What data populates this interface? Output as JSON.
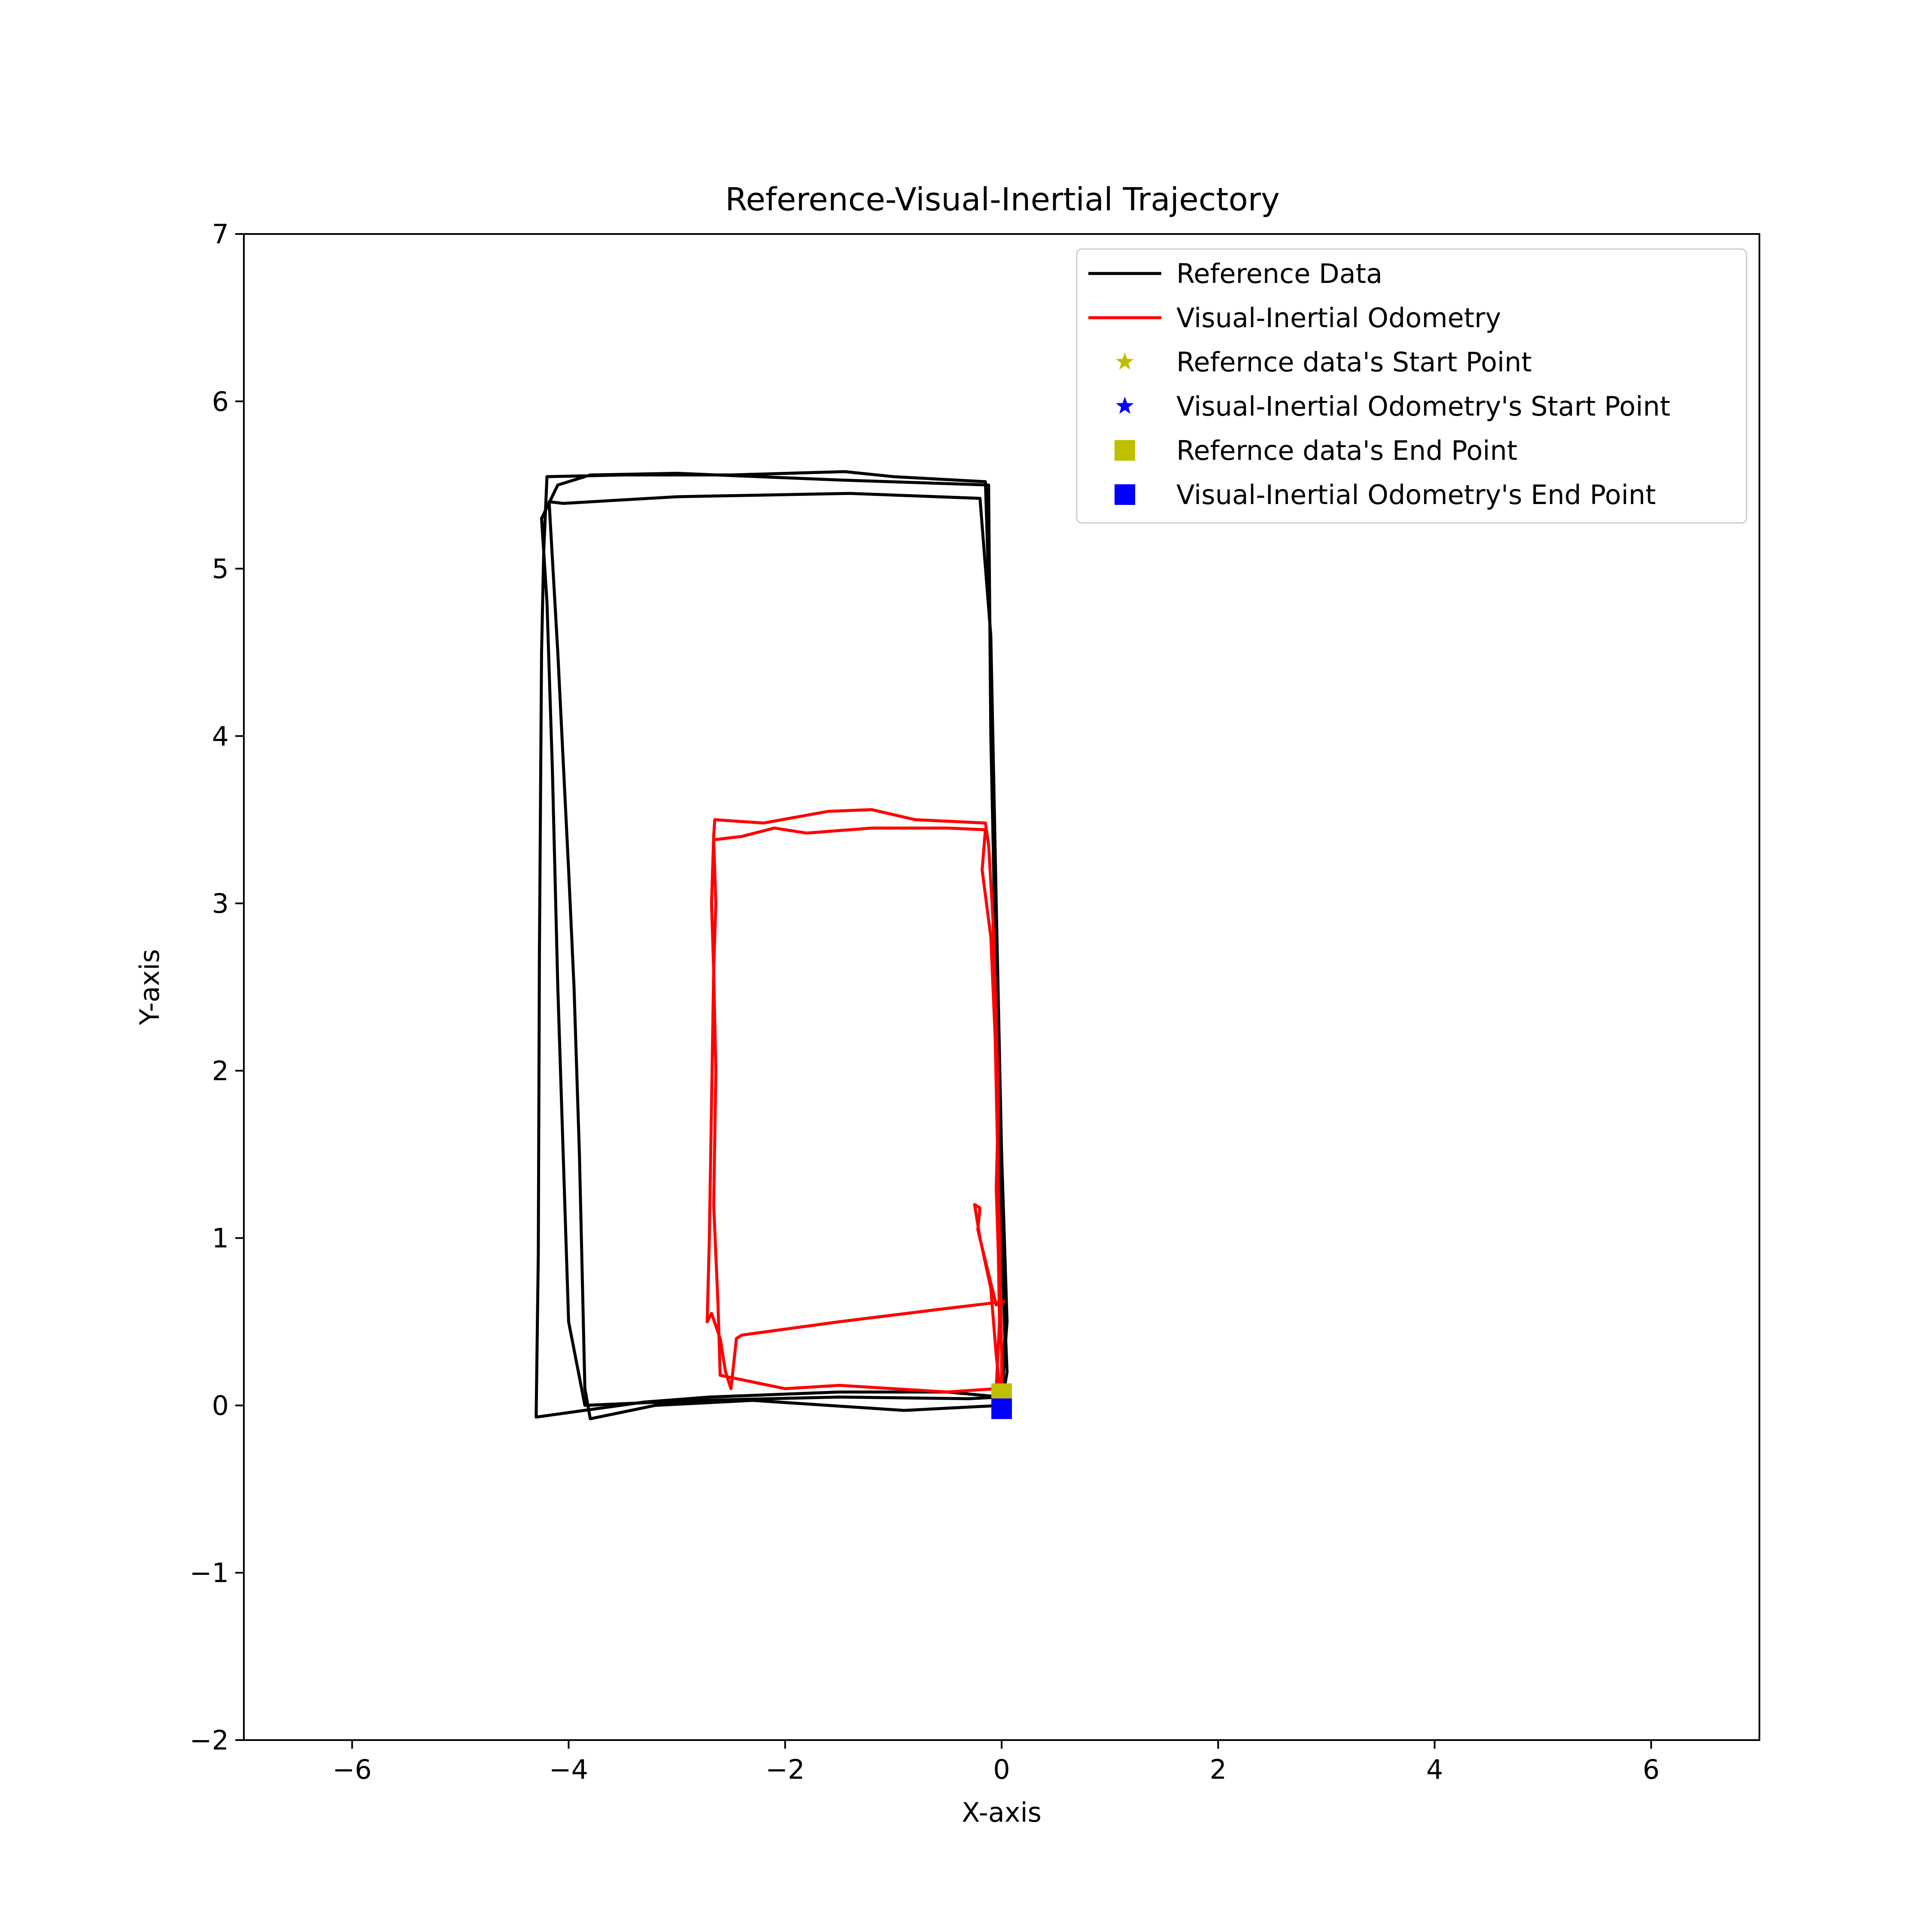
{
  "chart_data": {
    "type": "line",
    "title": "Reference-Visual-Inertial Trajectory",
    "xlabel": "X-axis",
    "ylabel": "Y-axis",
    "xlim": [
      -7,
      7
    ],
    "ylim": [
      -2,
      7
    ],
    "xticks": [
      -6,
      -4,
      -2,
      0,
      2,
      4,
      6
    ],
    "yticks": [
      -2,
      -1,
      0,
      1,
      2,
      3,
      4,
      5,
      6,
      7
    ],
    "xtick_labels": [
      "−6",
      "−4",
      "−2",
      "0",
      "2",
      "4",
      "6"
    ],
    "ytick_labels": [
      "−2",
      "−1",
      "0",
      "1",
      "2",
      "3",
      "4",
      "5",
      "6",
      "7"
    ],
    "grid": false,
    "legend_position": "upper-right",
    "series": [
      {
        "name": "Reference Data",
        "color": "#000000",
        "kind": "line",
        "points": [
          [
            0.0,
            0.0
          ],
          [
            -0.9,
            -0.03
          ],
          [
            -2.3,
            0.03
          ],
          [
            -3.2,
            0.0
          ],
          [
            -3.8,
            -0.08
          ],
          [
            -3.85,
            0.1
          ],
          [
            -3.9,
            1.5
          ],
          [
            -3.95,
            2.5
          ],
          [
            -4.0,
            3.2
          ],
          [
            -4.1,
            4.5
          ],
          [
            -4.18,
            5.4
          ],
          [
            -4.05,
            5.39
          ],
          [
            -3.0,
            5.43
          ],
          [
            -1.4,
            5.45
          ],
          [
            -0.2,
            5.42
          ],
          [
            -0.1,
            4.6
          ],
          [
            -0.05,
            3.0
          ],
          [
            0.0,
            1.5
          ],
          [
            0.05,
            0.5
          ],
          [
            0.0,
            0.05
          ],
          [
            -0.5,
            0.08
          ],
          [
            -1.5,
            0.08
          ],
          [
            -2.7,
            0.05
          ],
          [
            -3.3,
            0.02
          ],
          [
            -4.3,
            -0.07
          ],
          [
            -4.28,
            0.9
          ],
          [
            -4.27,
            2.7
          ],
          [
            -4.25,
            4.5
          ],
          [
            -4.23,
            5.1
          ],
          [
            -4.2,
            5.55
          ],
          [
            -3.5,
            5.56
          ],
          [
            -2.5,
            5.56
          ],
          [
            -1.45,
            5.58
          ],
          [
            -1.0,
            5.55
          ],
          [
            -0.15,
            5.52
          ],
          [
            -0.1,
            4.5
          ],
          [
            -0.05,
            2.6
          ],
          [
            -0.02,
            1.5
          ],
          [
            0.03,
            0.4
          ],
          [
            0.0,
            0.05
          ],
          [
            -0.3,
            0.04
          ],
          [
            -1.5,
            0.05
          ],
          [
            -2.8,
            0.03
          ],
          [
            -3.85,
            0.0
          ],
          [
            -4.0,
            0.5
          ],
          [
            -4.05,
            1.5
          ],
          [
            -4.1,
            2.5
          ],
          [
            -4.15,
            3.8
          ],
          [
            -4.2,
            4.8
          ],
          [
            -4.25,
            5.3
          ],
          [
            -4.1,
            5.5
          ],
          [
            -3.8,
            5.56
          ],
          [
            -3.0,
            5.57
          ],
          [
            -1.5,
            5.53
          ],
          [
            -0.12,
            5.5
          ],
          [
            -0.1,
            4.0
          ],
          [
            -0.05,
            2.5
          ],
          [
            0.0,
            1.0
          ],
          [
            0.05,
            0.2
          ],
          [
            0.0,
            0.0
          ]
        ]
      },
      {
        "name": "Visual-Inertial Odometry",
        "color": "#ff0000",
        "kind": "line",
        "points": [
          [
            0.0,
            0.0
          ],
          [
            -0.05,
            0.3
          ],
          [
            -0.1,
            0.7
          ],
          [
            -0.2,
            1.0
          ],
          [
            -0.25,
            1.2
          ],
          [
            -0.2,
            1.18
          ],
          [
            -0.22,
            1.05
          ],
          [
            -0.05,
            0.6
          ],
          [
            0.02,
            0.62
          ],
          [
            -0.5,
            0.58
          ],
          [
            -1.5,
            0.5
          ],
          [
            -2.4,
            0.42
          ],
          [
            -2.45,
            0.4
          ],
          [
            -2.5,
            0.1
          ],
          [
            -2.55,
            0.2
          ],
          [
            -2.6,
            0.4
          ],
          [
            -2.68,
            0.55
          ],
          [
            -2.72,
            0.5
          ],
          [
            -2.7,
            1.0
          ],
          [
            -2.68,
            1.8
          ],
          [
            -2.66,
            2.6
          ],
          [
            -2.68,
            3.0
          ],
          [
            -2.66,
            3.4
          ],
          [
            -2.65,
            3.5
          ],
          [
            -2.2,
            3.48
          ],
          [
            -1.6,
            3.55
          ],
          [
            -1.2,
            3.56
          ],
          [
            -0.8,
            3.5
          ],
          [
            -0.15,
            3.48
          ],
          [
            -0.12,
            3.35
          ],
          [
            -0.08,
            2.9
          ],
          [
            -0.05,
            2.3
          ],
          [
            -0.03,
            1.8
          ],
          [
            -0.05,
            1.3
          ],
          [
            -0.03,
            0.9
          ],
          [
            -0.02,
            0.5
          ],
          [
            -0.05,
            0.1
          ],
          [
            -0.5,
            0.08
          ],
          [
            -1.0,
            0.1
          ],
          [
            -1.5,
            0.12
          ],
          [
            -2.0,
            0.1
          ],
          [
            -2.6,
            0.18
          ],
          [
            -2.62,
            0.6
          ],
          [
            -2.66,
            1.2
          ],
          [
            -2.64,
            2.0
          ],
          [
            -2.66,
            2.6
          ],
          [
            -2.64,
            3.0
          ],
          [
            -2.66,
            3.38
          ],
          [
            -2.4,
            3.4
          ],
          [
            -2.1,
            3.45
          ],
          [
            -1.8,
            3.42
          ],
          [
            -1.2,
            3.45
          ],
          [
            -0.5,
            3.45
          ],
          [
            -0.15,
            3.44
          ],
          [
            -0.18,
            3.2
          ],
          [
            -0.1,
            2.8
          ],
          [
            -0.06,
            2.2
          ],
          [
            -0.04,
            1.6
          ],
          [
            -0.02,
            1.0
          ],
          [
            0.0,
            0.3
          ],
          [
            0.0,
            0.05
          ]
        ]
      },
      {
        "name": "Refernce data's Start Point",
        "color": "#bfbf00",
        "kind": "star",
        "points": [
          [
            0.0,
            0.0
          ]
        ]
      },
      {
        "name": "Visual-Inertial Odometry's Start Point",
        "color": "#0000ff",
        "kind": "star",
        "points": [
          [
            0.0,
            0.0
          ]
        ]
      },
      {
        "name": "Refernce data's End Point",
        "color": "#bfbf00",
        "kind": "square",
        "points": [
          [
            0.0,
            0.07
          ]
        ]
      },
      {
        "name": "Visual-Inertial Odometry's End Point",
        "color": "#0000ff",
        "kind": "square",
        "points": [
          [
            0.0,
            -0.02
          ]
        ]
      }
    ]
  }
}
